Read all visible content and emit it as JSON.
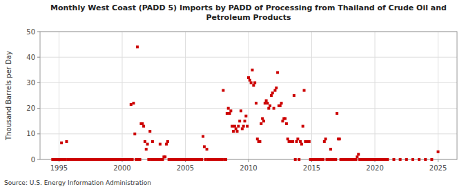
{
  "chart_data": {
    "type": "scatter",
    "title": "Monthly West Coast (PADD 5) Imports by PADD of Processing from Thailand of Crude Oil and\nPetroleum Products",
    "ylabel": "Thousand Barrels per Day",
    "annotations": [
      "Source: U.S. Energy Information Administration"
    ],
    "color": "#cc0000",
    "marker": "square",
    "grid": true,
    "xlim": [
      1993.5,
      2026.5
    ],
    "ylim": [
      0,
      50
    ],
    "xticks": [
      1995,
      2000,
      2005,
      2010,
      2015,
      2020,
      2025
    ],
    "yticks": [
      0,
      10,
      20,
      30,
      40,
      50
    ],
    "x": [
      1994.5,
      1994.6,
      1994.7,
      1994.8,
      1994.9,
      1995.0,
      1995.1,
      1995.2,
      1995.3,
      1995.4,
      1995.5,
      1995.6,
      1995.7,
      1995.8,
      1995.9,
      1996.0,
      1996.1,
      1996.2,
      1996.3,
      1996.4,
      1996.5,
      1996.6,
      1996.7,
      1996.8,
      1996.9,
      1997.0,
      1997.1,
      1997.2,
      1997.3,
      1997.4,
      1997.5,
      1997.6,
      1997.7,
      1997.8,
      1997.9,
      1998.0,
      1998.1,
      1998.2,
      1998.3,
      1998.4,
      1998.5,
      1998.6,
      1998.7,
      1998.8,
      1998.9,
      1999.0,
      1999.1,
      1999.2,
      1999.3,
      1999.4,
      1999.5,
      1999.6,
      1999.7,
      1999.8,
      1999.9,
      2000.0,
      2000.1,
      2000.2,
      2000.3,
      2000.4,
      2000.5,
      2000.6,
      2000.7,
      2000.8,
      2000.9,
      2001.0,
      2001.1,
      2001.2,
      2001.3,
      2001.4,
      2001.5,
      2001.6,
      2001.7,
      2001.8,
      2001.9,
      2002.0,
      2002.1,
      2002.2,
      2002.3,
      2002.4,
      2002.5,
      2002.6,
      2002.7,
      2002.8,
      2002.9,
      2003.0,
      2003.1,
      2003.2,
      2003.3,
      2003.4,
      2003.5,
      2003.6,
      2003.7,
      2003.8,
      2003.9,
      2004.0,
      2004.1,
      2004.2,
      2004.3,
      2004.4,
      2004.5,
      2004.6,
      2004.7,
      2004.8,
      2004.9,
      2005.0,
      2005.1,
      2005.2,
      2005.3,
      2005.4,
      2005.5,
      2005.6,
      2005.7,
      2005.8,
      2005.9,
      2006.0,
      2006.1,
      2006.2,
      2006.3,
      2006.4,
      2006.5,
      2006.6,
      2006.7,
      2006.8,
      2006.9,
      2007.0,
      2007.1,
      2007.2,
      2007.3,
      2007.4,
      2007.5,
      2007.6,
      2007.7,
      2007.8,
      2007.9,
      2008.0,
      2008.1,
      2008.2,
      2008.3,
      2008.4,
      2008.5,
      2008.6,
      2008.7,
      2008.8,
      2008.9,
      2009.0,
      2009.1,
      2009.2,
      2009.3,
      2009.4,
      2009.5,
      2009.6,
      2009.7,
      2009.8,
      2009.9,
      2010.0,
      2010.1,
      2010.2,
      2010.3,
      2010.4,
      2010.5,
      2010.6,
      2010.7,
      2010.8,
      2010.9,
      2011.0,
      2011.1,
      2011.2,
      2011.3,
      2011.4,
      2011.5,
      2011.6,
      2011.7,
      2011.8,
      2011.9,
      2012.0,
      2012.1,
      2012.2,
      2012.3,
      2012.4,
      2012.5,
      2012.6,
      2012.7,
      2012.8,
      2012.9,
      2013.0,
      2013.1,
      2013.2,
      2013.3,
      2013.4,
      2013.5,
      2013.6,
      2013.7,
      2013.8,
      2013.9,
      2014.0,
      2014.1,
      2014.2,
      2014.3,
      2014.4,
      2014.5,
      2014.6,
      2014.7,
      2014.8,
      2014.9,
      2015.0,
      2015.1,
      2015.2,
      2015.3,
      2015.4,
      2015.5,
      2015.6,
      2015.7,
      2015.8,
      2015.9,
      2016.0,
      2016.1,
      2016.2,
      2016.3,
      2016.4,
      2016.5,
      2016.6,
      2016.7,
      2016.8,
      2016.9,
      2017.0,
      2017.1,
      2017.2,
      2017.3,
      2017.4,
      2017.5,
      2017.6,
      2017.7,
      2017.8,
      2017.9,
      2018.0,
      2018.1,
      2018.2,
      2018.3,
      2018.4,
      2018.5,
      2018.6,
      2018.7,
      2018.8,
      2018.9,
      2019.0,
      2019.1,
      2019.2,
      2019.3,
      2019.4,
      2019.5,
      2019.6,
      2019.7,
      2019.8,
      2019.9,
      2020.0,
      2020.1,
      2020.2,
      2020.3,
      2020.4,
      2020.5,
      2020.6,
      2020.7,
      2020.8,
      2020.9,
      2021.0,
      2021.5,
      2022.0,
      2022.5,
      2023.0,
      2023.5,
      2024.0,
      2024.5,
      2025.0
    ],
    "values": [
      0.0,
      0.0,
      0.0,
      0.0,
      0.0,
      0.0,
      0.0,
      6.5,
      0.0,
      0.0,
      0.0,
      7.0,
      0.0,
      0.0,
      0.0,
      0.0,
      0.0,
      0.0,
      0.0,
      0.0,
      0.0,
      0.0,
      0.0,
      0.0,
      0.0,
      0.0,
      0.0,
      0.0,
      0.0,
      0.0,
      0.0,
      0.0,
      0.0,
      0.0,
      0.0,
      0.0,
      0.0,
      0.0,
      0.0,
      0.0,
      0.0,
      0.0,
      0.0,
      0.0,
      0.0,
      0.0,
      0.0,
      0.0,
      0.0,
      0.0,
      0.0,
      0.0,
      0.0,
      0.0,
      0.0,
      0.0,
      0.0,
      0.0,
      0.0,
      0.0,
      0.0,
      0.0,
      21.5,
      0.0,
      22.0,
      10.0,
      0.0,
      44.0,
      0.0,
      0.0,
      14.0,
      14.0,
      13.0,
      7.0,
      4.0,
      6.0,
      0.0,
      11.0,
      0.0,
      7.0,
      0.0,
      0.0,
      0.0,
      0.0,
      0.0,
      6.0,
      0.0,
      0.0,
      1.0,
      1.0,
      6.0,
      7.0,
      0.0,
      0.0,
      0.0,
      0.0,
      0.0,
      0.0,
      0.0,
      0.0,
      0.0,
      0.0,
      0.0,
      0.0,
      0.0,
      0.0,
      0.0,
      0.0,
      0.0,
      0.0,
      0.0,
      0.0,
      0.0,
      0.0,
      0.0,
      0.0,
      0.0,
      0.0,
      0.0,
      9.0,
      5.0,
      0.0,
      4.0,
      0.0,
      0.0,
      0.0,
      0.0,
      0.0,
      0.0,
      0.0,
      0.0,
      0.0,
      0.0,
      0.0,
      0.0,
      27.0,
      0.0,
      0.0,
      18.0,
      20.0,
      18.0,
      19.0,
      13.0,
      11.0,
      13.0,
      12.0,
      11.0,
      13.0,
      15.0,
      19.0,
      12.0,
      13.0,
      15.0,
      17.0,
      13.0,
      32.0,
      31.0,
      30.0,
      35.0,
      29.0,
      30.0,
      22.0,
      8.0,
      7.0,
      7.0,
      14.0,
      16.0,
      15.0,
      22.0,
      23.0,
      22.0,
      20.0,
      21.0,
      25.0,
      26.0,
      20.0,
      27.0,
      28.0,
      34.0,
      21.0,
      21.0,
      22.0,
      15.0,
      16.0,
      16.0,
      14.0,
      8.0,
      7.0,
      7.0,
      7.0,
      7.0,
      25.0,
      0.0,
      7.0,
      8.0,
      0.0,
      7.0,
      6.0,
      13.0,
      27.0,
      7.0,
      7.0,
      7.0,
      7.0,
      0.0,
      0.0,
      0.0,
      0.0,
      0.0,
      0.0,
      0.0,
      0.0,
      0.0,
      0.0,
      0.0,
      7.0,
      8.0,
      0.0,
      0.0,
      0.0,
      4.0,
      0.0,
      0.0,
      0.0,
      0.0,
      18.0,
      8.0,
      8.0,
      0.0,
      0.0,
      0.0,
      0.0,
      0.0,
      0.0,
      0.0,
      0.0,
      0.0,
      0.0,
      0.0,
      0.0,
      0.0,
      1.0,
      2.0,
      0.0,
      0.0,
      0.0,
      0.0,
      0.0,
      0.0,
      0.0,
      0.0,
      0.0,
      0.0,
      0.0,
      0.0,
      0.0,
      0.0,
      0.0,
      0.0,
      0.0,
      0.0,
      0.0,
      0.0,
      0.0,
      0.0,
      0.0,
      0.0,
      0.0,
      0.0,
      0.0,
      0.0,
      0.0,
      0.0,
      3.0
    ]
  }
}
